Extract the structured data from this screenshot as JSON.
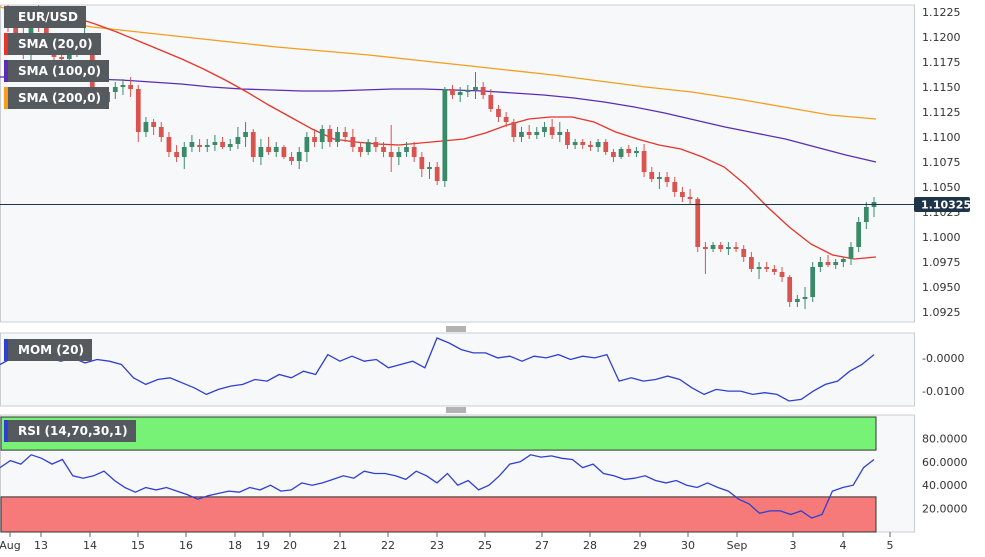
{
  "colors": {
    "bull": "#3a8a6a",
    "bear": "#d9534f",
    "sma20": "#e8332a",
    "sma100": "#5b2db5",
    "sma200": "#f59e1b",
    "mom": "#2f3fd0",
    "rsi": "#2f3fd0",
    "rsi_over": "#77f277",
    "rsi_under": "#f77a7a",
    "badge": "#1e3448"
  },
  "legends": {
    "symbol": "EUR/USD",
    "sma20": "SMA (20,0)",
    "sma100": "SMA (100,0)",
    "sma200": "SMA (200,0)",
    "mom": "MOM (20)",
    "rsi": "RSI (14,70,30,1)"
  },
  "chart_data": [
    {
      "type": "candlestick",
      "title": "EUR/USD",
      "current_price": "1.10325",
      "x_ticks": [
        "Aug",
        "13",
        "14",
        "15",
        "16",
        "18",
        "19",
        "20",
        "21",
        "22",
        "23",
        "25",
        "27",
        "28",
        "29",
        "30",
        "Sep",
        "3",
        "4",
        "5"
      ],
      "y_ticks": [
        "1.1225",
        "1.1200",
        "1.1175",
        "1.1150",
        "1.1125",
        "1.1100",
        "1.1075",
        "1.1050",
        "1.1025",
        "1.1000",
        "1.0975",
        "1.0950",
        "1.0925"
      ],
      "ylim": [
        1.0915,
        1.1232
      ],
      "candles": [
        [
          1.1225,
          1.1232,
          1.1205,
          1.1212
        ],
        [
          1.1212,
          1.1218,
          1.119,
          1.1198
        ],
        [
          1.1198,
          1.121,
          1.1178,
          1.1185
        ],
        [
          1.1185,
          1.123,
          1.1175,
          1.1222
        ],
        [
          1.1222,
          1.1232,
          1.1205,
          1.121
        ],
        [
          1.121,
          1.1215,
          1.119,
          1.1195
        ],
        [
          1.1195,
          1.12,
          1.1175,
          1.118
        ],
        [
          1.118,
          1.1192,
          1.1172,
          1.1178
        ],
        [
          1.1178,
          1.1195,
          1.117,
          1.1188
        ],
        [
          1.1188,
          1.12,
          1.118,
          1.1195
        ],
        [
          1.1195,
          1.121,
          1.1185,
          1.12
        ],
        [
          1.1192,
          1.1198,
          1.1135,
          1.114
        ],
        [
          1.114,
          1.115,
          1.113,
          1.1135
        ],
        [
          1.1135,
          1.115,
          1.113,
          1.1145
        ],
        [
          1.1145,
          1.1155,
          1.1138,
          1.115
        ],
        [
          1.115,
          1.1158,
          1.1142,
          1.1152
        ],
        [
          1.1152,
          1.116,
          1.114,
          1.1148
        ],
        [
          1.1148,
          1.1152,
          1.1095,
          1.1105
        ],
        [
          1.1105,
          1.112,
          1.11,
          1.1115
        ],
        [
          1.1115,
          1.1118,
          1.1102,
          1.111
        ],
        [
          1.111,
          1.1115,
          1.1095,
          1.11
        ],
        [
          1.11,
          1.1105,
          1.108,
          1.1085
        ],
        [
          1.1085,
          1.1092,
          1.1075,
          1.108
        ],
        [
          1.108,
          1.1095,
          1.1068,
          1.109
        ],
        [
          1.109,
          1.1102,
          1.1085,
          1.1095
        ],
        [
          1.1092,
          1.1098,
          1.1085,
          1.109
        ],
        [
          1.109,
          1.1098,
          1.1085,
          1.1092
        ],
        [
          1.1092,
          1.1102,
          1.1086,
          1.1095
        ],
        [
          1.1095,
          1.11,
          1.1088,
          1.109
        ],
        [
          1.109,
          1.1098,
          1.1086,
          1.1093
        ],
        [
          1.1093,
          1.111,
          1.1088,
          1.11
        ],
        [
          1.11,
          1.1115,
          1.109,
          1.1105
        ],
        [
          1.1105,
          1.1108,
          1.1075,
          1.108
        ],
        [
          1.108,
          1.1098,
          1.1072,
          1.109
        ],
        [
          1.109,
          1.11,
          1.1082,
          1.1085
        ],
        [
          1.1085,
          1.1095,
          1.108,
          1.109
        ],
        [
          1.109,
          1.1092,
          1.1078,
          1.108
        ],
        [
          1.108,
          1.1085,
          1.1072,
          1.1076
        ],
        [
          1.1076,
          1.109,
          1.1068,
          1.1085
        ],
        [
          1.1085,
          1.1105,
          1.1075,
          1.11
        ],
        [
          1.11,
          1.1108,
          1.109,
          1.1095
        ],
        [
          1.1095,
          1.1112,
          1.1088,
          1.1108
        ],
        [
          1.1108,
          1.1112,
          1.109,
          1.1095
        ],
        [
          1.1095,
          1.111,
          1.109,
          1.1105
        ],
        [
          1.1105,
          1.111,
          1.1095,
          1.11
        ],
        [
          1.11,
          1.1108,
          1.1085,
          1.109
        ],
        [
          1.109,
          1.1095,
          1.108,
          1.1085
        ],
        [
          1.1085,
          1.1098,
          1.1082,
          1.1095
        ],
        [
          1.1095,
          1.11,
          1.1085,
          1.109
        ],
        [
          1.109,
          1.1095,
          1.108,
          1.1085
        ],
        [
          1.1085,
          1.1112,
          1.1065,
          1.108
        ],
        [
          1.108,
          1.109,
          1.1072,
          1.1085
        ],
        [
          1.1085,
          1.1095,
          1.108,
          1.109
        ],
        [
          1.109,
          1.1095,
          1.1075,
          1.108
        ],
        [
          1.108,
          1.1085,
          1.106,
          1.1068
        ],
        [
          1.1068,
          1.1075,
          1.1058,
          1.107
        ],
        [
          1.107,
          1.1075,
          1.1052,
          1.1056
        ],
        [
          1.1056,
          1.115,
          1.105,
          1.1148
        ],
        [
          1.1148,
          1.1152,
          1.1138,
          1.1142
        ],
        [
          1.1142,
          1.115,
          1.1135,
          1.1145
        ],
        [
          1.1145,
          1.1152,
          1.114,
          1.1147
        ],
        [
          1.1147,
          1.1165,
          1.1138,
          1.115
        ],
        [
          1.115,
          1.1155,
          1.1138,
          1.1142
        ],
        [
          1.1142,
          1.1148,
          1.1125,
          1.1128
        ],
        [
          1.1128,
          1.1132,
          1.1115,
          1.112
        ],
        [
          1.112,
          1.1125,
          1.111,
          1.1115
        ],
        [
          1.1115,
          1.1118,
          1.1095,
          1.11
        ],
        [
          1.11,
          1.111,
          1.1095,
          1.1105
        ],
        [
          1.1105,
          1.1112,
          1.1098,
          1.1102
        ],
        [
          1.1102,
          1.111,
          1.1098,
          1.1105
        ],
        [
          1.1105,
          1.1115,
          1.11,
          1.111
        ],
        [
          1.111,
          1.1118,
          1.1098,
          1.1102
        ],
        [
          1.1102,
          1.1115,
          1.1095,
          1.1105
        ],
        [
          1.1105,
          1.1108,
          1.1088,
          1.1092
        ],
        [
          1.1092,
          1.1098,
          1.1088,
          1.1095
        ],
        [
          1.1095,
          1.1098,
          1.1088,
          1.1092
        ],
        [
          1.1092,
          1.1096,
          1.1086,
          1.109
        ],
        [
          1.109,
          1.1098,
          1.1085,
          1.1095
        ],
        [
          1.1095,
          1.1098,
          1.1082,
          1.1085
        ],
        [
          1.1085,
          1.1088,
          1.1075,
          1.108
        ],
        [
          1.108,
          1.109,
          1.1078,
          1.1088
        ],
        [
          1.1088,
          1.1092,
          1.108,
          1.1084
        ],
        [
          1.1084,
          1.109,
          1.108,
          1.1086
        ],
        [
          1.1086,
          1.1093,
          1.106,
          1.1065
        ],
        [
          1.1065,
          1.107,
          1.1055,
          1.1058
        ],
        [
          1.1058,
          1.1065,
          1.1048,
          1.106
        ],
        [
          1.106,
          1.1065,
          1.105,
          1.1055
        ],
        [
          1.1055,
          1.106,
          1.104,
          1.1045
        ],
        [
          1.1045,
          1.105,
          1.1035,
          1.104
        ],
        [
          1.104,
          1.1048,
          1.1032,
          1.1038
        ],
        [
          1.1038,
          1.104,
          1.0985,
          1.099
        ],
        [
          1.099,
          1.0995,
          1.0963,
          1.0988
        ],
        [
          1.0988,
          1.0995,
          1.0985,
          1.0992
        ],
        [
          1.0992,
          1.0995,
          1.0985,
          1.0988
        ],
        [
          1.0988,
          1.0995,
          1.0982,
          1.099
        ],
        [
          1.099,
          1.0995,
          1.0985,
          1.0988
        ],
        [
          1.0988,
          1.0992,
          1.0975,
          1.098
        ],
        [
          1.098,
          1.0985,
          1.0965,
          1.0968
        ],
        [
          1.0968,
          1.0975,
          1.0958,
          1.097
        ],
        [
          1.097,
          1.0975,
          1.0965,
          1.0968
        ],
        [
          1.0968,
          1.0972,
          1.0962,
          1.0965
        ],
        [
          1.0965,
          1.097,
          1.0955,
          1.096
        ],
        [
          1.096,
          1.0962,
          1.093,
          1.0935
        ],
        [
          1.0935,
          1.0942,
          1.093,
          1.0938
        ],
        [
          1.0938,
          1.095,
          1.0928,
          1.094
        ],
        [
          1.094,
          1.0975,
          1.0935,
          1.097
        ],
        [
          1.097,
          1.098,
          1.0965,
          1.0975
        ],
        [
          1.0975,
          1.0982,
          1.097,
          1.0972
        ],
        [
          1.0972,
          1.0978,
          1.0968,
          1.0975
        ],
        [
          1.0975,
          1.098,
          1.097,
          1.0978
        ],
        [
          1.0978,
          1.0995,
          1.0972,
          1.099
        ],
        [
          1.099,
          1.102,
          1.0985,
          1.1015
        ],
        [
          1.1015,
          1.1035,
          1.1008,
          1.103
        ],
        [
          1.103,
          1.104,
          1.102,
          1.1035
        ]
      ],
      "sma20": [
        1.123,
        1.1225,
        1.122,
        1.1213,
        1.1205,
        1.1196,
        1.1187,
        1.1178,
        1.1168,
        1.1157,
        1.1145,
        1.1132,
        1.112,
        1.1108,
        1.1098,
        1.1095,
        1.1093,
        1.1092,
        1.1094,
        1.1096,
        1.1098,
        1.1104,
        1.1112,
        1.1118,
        1.112,
        1.112,
        1.1115,
        1.1105,
        1.1098,
        1.1092,
        1.1088,
        1.108,
        1.107,
        1.1052,
        1.103,
        1.101,
        1.0993,
        1.0982,
        1.0978,
        1.098
      ],
      "sma100": [
        1.116,
        1.116,
        1.1159,
        1.1158,
        1.1157,
        1.1155,
        1.1153,
        1.115,
        1.1148,
        1.1147,
        1.1146,
        1.1146,
        1.1147,
        1.1148,
        1.1148,
        1.1147,
        1.1146,
        1.1144,
        1.1142,
        1.1139,
        1.1135,
        1.113,
        1.1124,
        1.1117,
        1.111,
        1.1104,
        1.1098,
        1.109,
        1.1082,
        1.1075
      ],
      "sma200": [
        1.123,
        1.1218,
        1.121,
        1.1205,
        1.12,
        1.1195,
        1.119,
        1.1186,
        1.1182,
        1.1177,
        1.1172,
        1.1167,
        1.1162,
        1.1156,
        1.115,
        1.1145,
        1.1138,
        1.113,
        1.1122,
        1.1118
      ]
    },
    {
      "type": "line",
      "title": "MOM (20)",
      "y_ticks": [
        "-0.0000",
        "-0.0100"
      ],
      "ylim": [
        -0.0145,
        0.0075
      ],
      "values": [
        -0.002,
        0.0,
        0.001,
        -0.0005,
        0.0,
        -0.001,
        0.0,
        -0.0015,
        -0.0005,
        -0.001,
        -0.002,
        -0.006,
        -0.008,
        -0.0065,
        -0.006,
        -0.0075,
        -0.009,
        -0.011,
        -0.0095,
        -0.0085,
        -0.008,
        -0.0065,
        -0.007,
        -0.005,
        -0.006,
        -0.004,
        -0.005,
        0.001,
        -0.001,
        0.0005,
        -0.001,
        -0.0005,
        -0.003,
        -0.002,
        -0.001,
        -0.003,
        0.006,
        0.0045,
        0.0025,
        0.0015,
        0.0015,
        0.0,
        0.0005,
        -0.001,
        0.0005,
        0.0,
        0.001,
        -0.0005,
        0.0005,
        0.0,
        0.001,
        -0.007,
        -0.006,
        -0.007,
        -0.0065,
        -0.0055,
        -0.0065,
        -0.009,
        -0.011,
        -0.0095,
        -0.01,
        -0.01,
        -0.011,
        -0.0105,
        -0.011,
        -0.013,
        -0.0125,
        -0.01,
        -0.008,
        -0.007,
        -0.004,
        -0.002,
        0.001
      ]
    },
    {
      "type": "line",
      "title": "RSI (14,70,30,1)",
      "y_ticks": [
        "80.0000",
        "60.0000",
        "40.0000",
        "20.0000"
      ],
      "ylim": [
        0,
        100
      ],
      "overbought": 70,
      "oversold": 30,
      "values": [
        55,
        61,
        58,
        66,
        63,
        58,
        62,
        48,
        46,
        48,
        52,
        44,
        38,
        34,
        38,
        36,
        38,
        35,
        32,
        28,
        31,
        33,
        35,
        34,
        38,
        36,
        40,
        35,
        36,
        42,
        40,
        42,
        45,
        48,
        46,
        52,
        50,
        50,
        48,
        45,
        52,
        48,
        42,
        50,
        40,
        44,
        36,
        40,
        48,
        58,
        60,
        66,
        64,
        65,
        63,
        62,
        55,
        58,
        50,
        48,
        45,
        46,
        48,
        44,
        42,
        44,
        40,
        38,
        42,
        38,
        35,
        28,
        24,
        16,
        18,
        18,
        15,
        18,
        12,
        15,
        35,
        38,
        40,
        55,
        62
      ]
    }
  ],
  "x_axis": {
    "ticks": [
      "Aug",
      "13",
      "14",
      "15",
      "16",
      "18",
      "19",
      "20",
      "21",
      "22",
      "23",
      "25",
      "27",
      "28",
      "29",
      "30",
      "Sep",
      "3",
      "4",
      "5"
    ]
  }
}
